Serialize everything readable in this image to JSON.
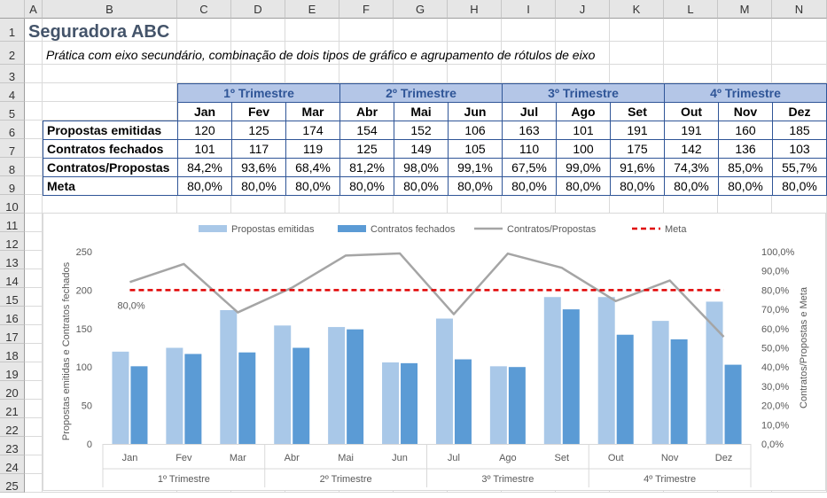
{
  "spreadsheet": {
    "col_headers": [
      "A",
      "B",
      "C",
      "D",
      "E",
      "F",
      "G",
      "H",
      "I",
      "J",
      "K",
      "L",
      "M",
      "N"
    ],
    "row_headers": [
      "1",
      "2",
      "3",
      "4",
      "5",
      "6",
      "7",
      "8",
      "9",
      "10",
      "11",
      "12",
      "13",
      "14",
      "15",
      "16",
      "17",
      "18",
      "19",
      "20",
      "21",
      "22",
      "23",
      "24",
      "25"
    ]
  },
  "sheet": {
    "title": "Seguradora ABC",
    "subtitle": "Prática com eixo secundário, combinação de dois tipos de gráfico e agrupamento de rótulos de eixo"
  },
  "table": {
    "quarters": [
      "1º Trimestre",
      "2º Trimestre",
      "3º Trimestre",
      "4º Trimestre"
    ],
    "months": [
      "Jan",
      "Fev",
      "Mar",
      "Abr",
      "Mai",
      "Jun",
      "Jul",
      "Ago",
      "Set",
      "Out",
      "Nov",
      "Dez"
    ],
    "rows": [
      {
        "label": "Propostas emitidas",
        "values": [
          "120",
          "125",
          "174",
          "154",
          "152",
          "106",
          "163",
          "101",
          "191",
          "191",
          "160",
          "185"
        ]
      },
      {
        "label": "Contratos fechados",
        "values": [
          "101",
          "117",
          "119",
          "125",
          "149",
          "105",
          "110",
          "100",
          "175",
          "142",
          "136",
          "103"
        ]
      },
      {
        "label": "Contratos/Propostas",
        "values": [
          "84,2%",
          "93,6%",
          "68,4%",
          "81,2%",
          "98,0%",
          "99,1%",
          "67,5%",
          "99,0%",
          "91,6%",
          "74,3%",
          "85,0%",
          "55,7%"
        ]
      },
      {
        "label": "Meta",
        "values": [
          "80,0%",
          "80,0%",
          "80,0%",
          "80,0%",
          "80,0%",
          "80,0%",
          "80,0%",
          "80,0%",
          "80,0%",
          "80,0%",
          "80,0%",
          "80,0%"
        ]
      }
    ]
  },
  "chart_data": {
    "type": "bar",
    "categories": [
      "Jan",
      "Fev",
      "Mar",
      "Abr",
      "Mai",
      "Jun",
      "Jul",
      "Ago",
      "Set",
      "Out",
      "Nov",
      "Dez"
    ],
    "groups": [
      "1º Trimestre",
      "2º Trimestre",
      "3º Trimestre",
      "4º Trimestre"
    ],
    "series": [
      {
        "name": "Propostas emitidas",
        "kind": "bar",
        "axis": "primary",
        "color": "#a9c8e8",
        "values": [
          120,
          125,
          174,
          154,
          152,
          106,
          163,
          101,
          191,
          191,
          160,
          185
        ]
      },
      {
        "name": "Contratos fechados",
        "kind": "bar",
        "axis": "primary",
        "color": "#5b9bd5",
        "values": [
          101,
          117,
          119,
          125,
          149,
          105,
          110,
          100,
          175,
          142,
          136,
          103
        ]
      },
      {
        "name": "Contratos/Propostas",
        "kind": "line",
        "axis": "secondary",
        "color": "#a5a5a5",
        "values": [
          0.842,
          0.936,
          0.684,
          0.812,
          0.98,
          0.991,
          0.675,
          0.99,
          0.916,
          0.743,
          0.85,
          0.557
        ]
      },
      {
        "name": "Meta",
        "kind": "dashed-line",
        "axis": "secondary",
        "color": "#e00000",
        "values": [
          0.8,
          0.8,
          0.8,
          0.8,
          0.8,
          0.8,
          0.8,
          0.8,
          0.8,
          0.8,
          0.8,
          0.8
        ]
      }
    ],
    "ylabel": "Propostas emitidas e Contratos fechados",
    "y2label": "Contratos/Propostas e Meta",
    "ylim": [
      0,
      250
    ],
    "yticks": [
      "0",
      "50",
      "100",
      "150",
      "200",
      "250"
    ],
    "y2lim": [
      0,
      1
    ],
    "y2ticks": [
      "0,0%",
      "10,0%",
      "20,0%",
      "30,0%",
      "40,0%",
      "50,0%",
      "60,0%",
      "70,0%",
      "80,0%",
      "90,0%",
      "100,0%"
    ],
    "data_label": "80,0%",
    "legend_position": "top",
    "grid": false
  }
}
